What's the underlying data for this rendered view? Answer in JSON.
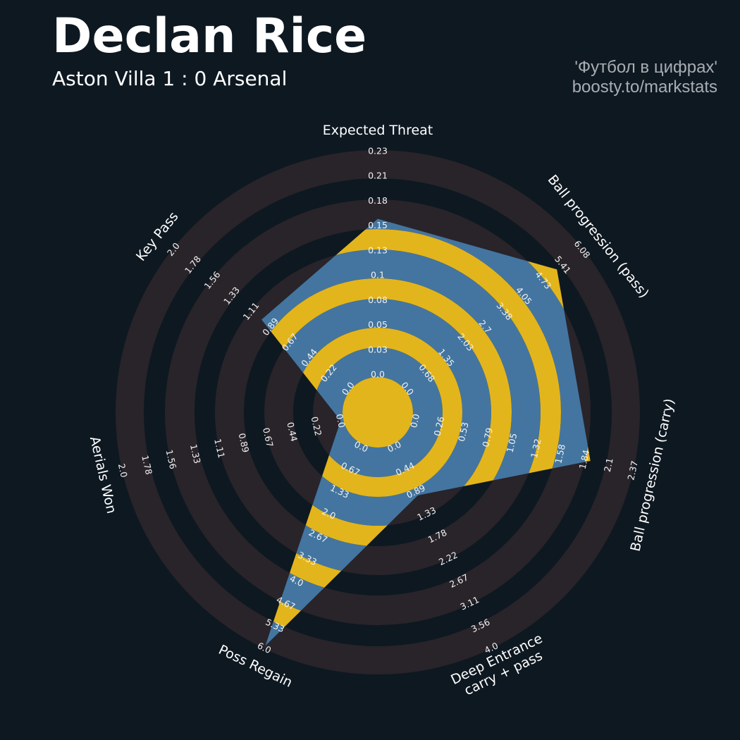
{
  "header": {
    "title": "Declan Rice",
    "subtitle": "Aston Villa 1 : 0 Arsenal",
    "credit_line1": "'Футбол в цифрах'",
    "credit_line2": "boosty.to/markstats"
  },
  "colors": {
    "background": "#0e1821",
    "ring_gray": "#28242a",
    "polygon_blue": "#4375a0",
    "polygon_yellow": "#e3b51c",
    "text": "#ffffff",
    "credit_text": "#a8adb3"
  },
  "chart_data": {
    "type": "radar",
    "params": [
      {
        "label": "Expected Threat",
        "ticks": [
          "0.0",
          "0.03",
          "0.05",
          "0.08",
          "0.1",
          "0.13",
          "0.15",
          "0.18",
          "0.21",
          "0.23"
        ],
        "min": 0.0,
        "max": 0.23,
        "value": 0.16
      },
      {
        "label": "Ball progression (pass)",
        "ticks": [
          "0.0",
          "0.68",
          "1.35",
          "2.03",
          "2.7",
          "3.38",
          "4.05",
          "4.73",
          "5.41",
          "6.08"
        ],
        "min": 0.0,
        "max": 6.08,
        "value": 5.2
      },
      {
        "label": "Ball progression (carry)",
        "ticks": [
          "0.0",
          "0.26",
          "0.53",
          "0.79",
          "1.05",
          "1.32",
          "1.58",
          "1.84",
          "2.1",
          "2.37"
        ],
        "min": 0.0,
        "max": 2.37,
        "value": 1.91
      },
      {
        "label": "Deep Entrance\ncarry + pass",
        "label_lines": [
          "Deep Entrance",
          "carry + pass"
        ],
        "ticks": [
          "0.0",
          "0.44",
          "0.89",
          "1.33",
          "1.78",
          "2.22",
          "2.67",
          "3.11",
          "3.56",
          "4.0"
        ],
        "min": 0.0,
        "max": 4.0,
        "value": 0.97
      },
      {
        "label": "Poss Regain",
        "ticks": [
          "0.0",
          "0.67",
          "1.33",
          "2.0",
          "2.67",
          "3.33",
          "4.0",
          "4.67",
          "5.33",
          "6.0"
        ],
        "min": 0.0,
        "max": 6.0,
        "value": 5.94
      },
      {
        "label": "Aerials Won",
        "ticks": [
          "0.0",
          "0.22",
          "0.44",
          "0.67",
          "0.89",
          "1.11",
          "1.33",
          "1.56",
          "1.78",
          "2.0"
        ],
        "min": 0.0,
        "max": 2.0,
        "value": 0.0
      },
      {
        "label": "Key Pass",
        "ticks": [
          "0.0",
          "0.22",
          "0.44",
          "0.67",
          "0.89",
          "1.11",
          "1.33",
          "1.56",
          "1.78",
          "2.0"
        ],
        "min": 0.0,
        "max": 2.0,
        "value": 0.99
      }
    ]
  }
}
